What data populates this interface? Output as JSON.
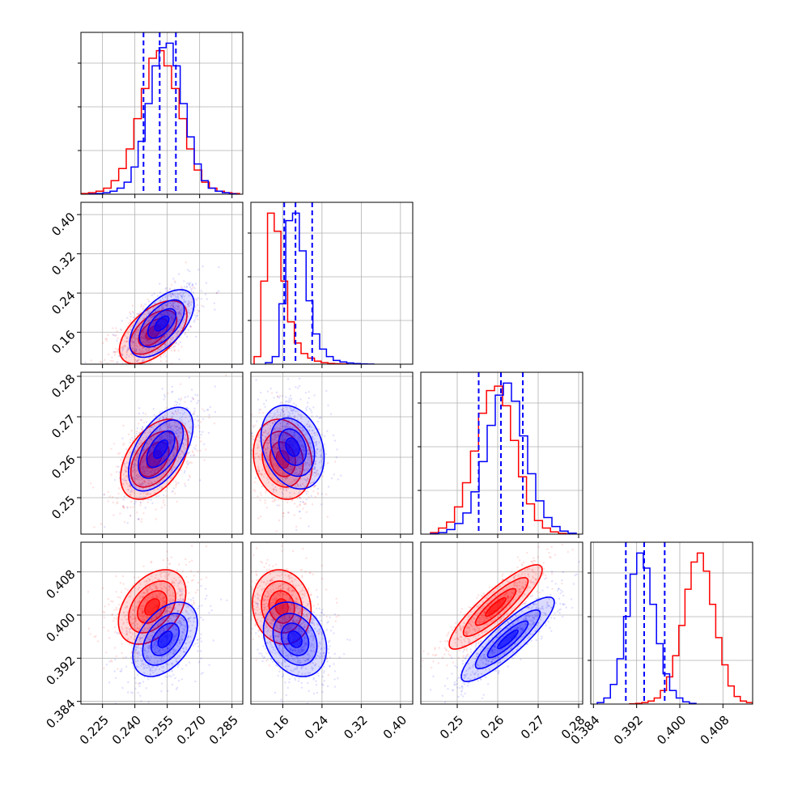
{
  "chart_data": {
    "type": "corner",
    "grid": true,
    "series": [
      {
        "name": "",
        "color": "#ff0000"
      },
      {
        "name": "",
        "color": "#0000ff"
      }
    ],
    "parameters": [
      {
        "range": [
          0.215,
          0.29
        ],
        "ticks": [
          "0.225",
          "0.240",
          "0.255",
          "0.270",
          "0.285"
        ],
        "tick_values": [
          0.225,
          0.24,
          0.255,
          0.27,
          0.285
        ]
      },
      {
        "range": [
          0.095,
          0.425
        ],
        "ticks": [
          "0.16",
          "0.24",
          "0.32",
          "0.40"
        ],
        "tick_values": [
          0.16,
          0.24,
          0.32,
          0.4
        ]
      },
      {
        "range": [
          0.241,
          0.281
        ],
        "ticks": [
          "0.25",
          "0.26",
          "0.27",
          "0.28"
        ],
        "tick_values": [
          0.25,
          0.26,
          0.27,
          0.28
        ]
      },
      {
        "range": [
          0.3835,
          0.4135
        ],
        "ticks": [
          "0.384",
          "0.392",
          "0.400",
          "0.408"
        ],
        "tick_values": [
          0.384,
          0.392,
          0.4,
          0.408
        ]
      }
    ],
    "marginals": [
      {
        "quantiles": [
          0.244,
          0.2515,
          0.259
        ],
        "red": [
          0.5,
          1,
          2,
          4,
          9,
          17,
          30,
          50,
          70,
          90,
          95,
          85,
          70,
          50,
          30,
          16,
          8,
          4,
          2,
          1,
          0.5
        ],
        "blue": [
          0.2,
          0.5,
          1,
          2,
          4,
          8,
          18,
          35,
          60,
          85,
          97,
          100,
          85,
          60,
          38,
          20,
          9,
          4,
          2,
          1,
          0.3
        ]
      },
      {
        "quantiles": [
          0.163,
          0.186,
          0.22
        ],
        "red": [
          5,
          55,
          100,
          88,
          55,
          28,
          14,
          7,
          4,
          2,
          1,
          0.5,
          0.3,
          0.2
        ],
        "blue": [
          1,
          5,
          40,
          95,
          100,
          75,
          42,
          20,
          10,
          5,
          2.5,
          1.5,
          0.8,
          0.4,
          0.2,
          0.1
        ],
        "bins_red": 20,
        "bins_blue": 20
      },
      {
        "quantiles": [
          0.2553,
          0.2608,
          0.2662
        ],
        "red": [
          1,
          4,
          8,
          18,
          34,
          55,
          80,
          95,
          98,
          85,
          62,
          38,
          20,
          9,
          4,
          1.5,
          0.5
        ],
        "blue": [
          0.3,
          1,
          3,
          7,
          14,
          28,
          48,
          72,
          92,
          100,
          88,
          65,
          40,
          22,
          11,
          5,
          2,
          0.6
        ]
      },
      {
        "quantiles": [
          0.39,
          0.3934,
          0.3972
        ],
        "red": [
          0.2,
          0.5,
          1,
          2,
          4,
          9,
          18,
          32,
          52,
          76,
          94,
          100,
          88,
          66,
          44,
          26,
          12,
          5,
          2,
          1
        ],
        "blue": [
          1,
          4,
          13,
          30,
          58,
          86,
          100,
          90,
          66,
          40,
          20,
          9,
          4,
          1.5,
          0.5
        ]
      }
    ],
    "joint": [
      {
        "x": 0,
        "y": 1,
        "red": {
          "mean": [
            0.2485,
            0.16
          ],
          "sd": [
            0.0068,
            0.028
          ],
          "rho": 0.55
        },
        "blue": {
          "mean": [
            0.2525,
            0.178
          ],
          "sd": [
            0.0065,
            0.03
          ],
          "rho": 0.58
        }
      },
      {
        "x": 0,
        "y": 2,
        "red": {
          "mean": [
            0.249,
            0.2595
          ],
          "sd": [
            0.0068,
            0.0043
          ],
          "rho": 0.45
        },
        "blue": {
          "mean": [
            0.252,
            0.262
          ],
          "sd": [
            0.0065,
            0.0045
          ],
          "rho": 0.55
        }
      },
      {
        "x": 1,
        "y": 2,
        "red": {
          "mean": [
            0.16,
            0.2595
          ],
          "sd": [
            0.026,
            0.0043
          ],
          "rho": -0.15
        },
        "blue": {
          "mean": [
            0.18,
            0.2625
          ],
          "sd": [
            0.028,
            0.0045
          ],
          "rho": -0.25
        }
      },
      {
        "x": 0,
        "y": 3,
        "red": {
          "mean": [
            0.248,
            0.4015
          ],
          "sd": [
            0.0068,
            0.003
          ],
          "rho": 0.4
        },
        "blue": {
          "mean": [
            0.254,
            0.3955
          ],
          "sd": [
            0.0065,
            0.003
          ],
          "rho": 0.45
        }
      },
      {
        "x": 1,
        "y": 3,
        "red": {
          "mean": [
            0.158,
            0.4015
          ],
          "sd": [
            0.026,
            0.003
          ],
          "rho": -0.1
        },
        "blue": {
          "mean": [
            0.185,
            0.3955
          ],
          "sd": [
            0.028,
            0.003
          ],
          "rho": -0.25
        }
      },
      {
        "x": 2,
        "y": 3,
        "red": {
          "mean": [
            0.2595,
            0.4015
          ],
          "sd": [
            0.005,
            0.0034
          ],
          "rho": 0.88
        },
        "blue": {
          "mean": [
            0.2625,
            0.3955
          ],
          "sd": [
            0.005,
            0.0034
          ],
          "rho": 0.88
        }
      }
    ]
  }
}
